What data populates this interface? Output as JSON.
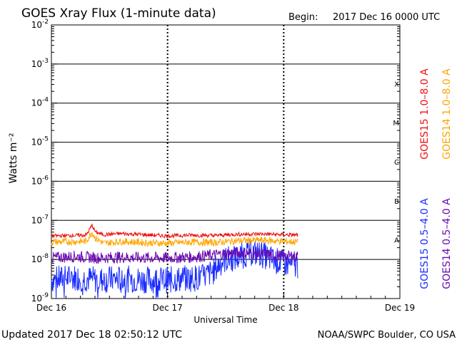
{
  "header": {
    "title": "GOES Xray Flux (1-minute data)",
    "begin_label": "Begin:",
    "begin_value": "2017 Dec 16 0000 UTC"
  },
  "footer": {
    "updated": "Updated 2017 Dec 18 02:50:12 UTC",
    "credit": "NOAA/SWPC Boulder, CO USA"
  },
  "legend": {
    "goes15_long": "GOES15 1.0–8.0 A",
    "goes14_long": "GOES14 1.0–8.0 A",
    "goes15_short": "GOES15 0.5–4.0 A",
    "goes14_short": "GOES14 0.5–4.0 A"
  },
  "colors": {
    "goes15_long": "#ee1111",
    "goes14_long": "#ffa500",
    "goes15_short": "#1a2cff",
    "goes14_short": "#6a0ab0"
  },
  "chart_data": {
    "type": "line",
    "title": "GOES Xray Flux (1-minute data)",
    "xlabel": "Universal Time",
    "ylabel": "Watts m⁻²",
    "yscale": "log",
    "ylim": [
      1e-09,
      0.01
    ],
    "xlim_days": [
      0,
      3
    ],
    "x_ticks": [
      "Dec 16",
      "Dec 17",
      "Dec 18",
      "Dec 19"
    ],
    "y_tick_base": "10",
    "y_ticks": [
      {
        "exp": "-2"
      },
      {
        "exp": "-3"
      },
      {
        "exp": "-4"
      },
      {
        "exp": "-5"
      },
      {
        "exp": "-6"
      },
      {
        "exp": "-7"
      },
      {
        "exp": "-8"
      },
      {
        "exp": "-9"
      }
    ],
    "flare_classes": [
      "X",
      "M",
      "C",
      "B",
      "A"
    ],
    "series": [
      {
        "name": "GOES15 1.0-8.0 A",
        "key": "goes15_long",
        "x": [
          0,
          0.3,
          0.35,
          0.38,
          0.45,
          0.6,
          0.8,
          1.0,
          1.2,
          1.4,
          1.6,
          1.8,
          2.0,
          2.12
        ],
        "y": [
          4e-08,
          4.2e-08,
          7.5e-08,
          5e-08,
          4.3e-08,
          4.6e-08,
          4.3e-08,
          4e-08,
          4.2e-08,
          4.1e-08,
          4.4e-08,
          4.5e-08,
          4.3e-08,
          4.2e-08
        ]
      },
      {
        "name": "GOES14 1.0-8.0 A",
        "key": "goes14_long",
        "x": [
          0,
          0.3,
          0.35,
          0.38,
          0.45,
          0.6,
          0.8,
          1.0,
          1.2,
          1.4,
          1.6,
          1.8,
          2.0,
          2.12
        ],
        "y": [
          2.8e-08,
          2.9e-08,
          5e-08,
          3.5e-08,
          2.6e-08,
          2.9e-08,
          2.7e-08,
          2.6e-08,
          2.8e-08,
          2.7e-08,
          3e-08,
          3.1e-08,
          2.9e-08,
          2.8e-08
        ]
      },
      {
        "name": "GOES15 0.5-4.0 A",
        "key": "goes15_short",
        "x": [
          0,
          0.2,
          0.4,
          0.6,
          0.8,
          1.0,
          1.2,
          1.3,
          1.4,
          1.45,
          1.5,
          1.6,
          1.7,
          1.8,
          1.9,
          2.0,
          2.12
        ],
        "y": [
          3e-09,
          3.5e-09,
          3e-09,
          3.2e-09,
          3e-09,
          3e-09,
          3.3e-09,
          3.5e-09,
          5e-09,
          8e-09,
          1e-08,
          1.1e-08,
          1.5e-08,
          1.4e-08,
          1e-08,
          8e-09,
          7e-09
        ]
      },
      {
        "name": "GOES14 0.5-4.0 A",
        "key": "goes14_short",
        "x": [
          0,
          0.2,
          0.4,
          0.6,
          0.8,
          1.0,
          1.2,
          1.4,
          1.6,
          1.8,
          2.0,
          2.12
        ],
        "y": [
          1.1e-08,
          1.2e-08,
          1.1e-08,
          1.15e-08,
          1.1e-08,
          1.1e-08,
          1.15e-08,
          1.3e-08,
          1.5e-08,
          1.4e-08,
          1.2e-08,
          1.2e-08
        ]
      }
    ]
  }
}
